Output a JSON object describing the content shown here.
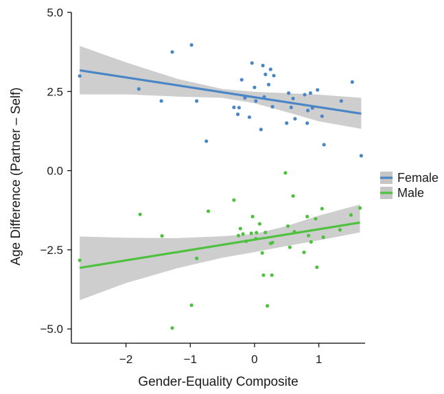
{
  "chart_data": {
    "type": "scatter",
    "title": "",
    "xlabel": "Gender-Equality Composite",
    "ylabel": "Age Difference (Partner – Self)",
    "xlim": [
      -2.85,
      1.72
    ],
    "ylim": [
      -5.45,
      5.0
    ],
    "x_ticks": [
      -2,
      -1,
      0,
      1
    ],
    "x_tick_labels": [
      "−2",
      "−1",
      "0",
      "1"
    ],
    "y_ticks": [
      5.0,
      2.5,
      0.0,
      -2.5,
      -5.0
    ],
    "y_tick_labels": [
      "5.0",
      "2.5",
      "0.0",
      "−2.5",
      "−5.0"
    ],
    "grid": false,
    "legend_position": "right",
    "series": [
      {
        "name": "Female",
        "color": "#4a86c6",
        "points": [
          {
            "x": -2.72,
            "y": 2.99
          },
          {
            "x": -1.8,
            "y": 2.58
          },
          {
            "x": -1.45,
            "y": 2.2
          },
          {
            "x": -1.28,
            "y": 3.75
          },
          {
            "x": -0.98,
            "y": 3.97
          },
          {
            "x": -0.9,
            "y": 2.2
          },
          {
            "x": -0.75,
            "y": 0.93
          },
          {
            "x": -0.32,
            "y": 2.0
          },
          {
            "x": -0.26,
            "y": 1.78
          },
          {
            "x": -0.24,
            "y": 1.99
          },
          {
            "x": -0.2,
            "y": 2.87
          },
          {
            "x": -0.15,
            "y": 2.3
          },
          {
            "x": -0.08,
            "y": 1.69
          },
          {
            "x": -0.04,
            "y": 3.4
          },
          {
            "x": 0.0,
            "y": 2.63
          },
          {
            "x": 0.02,
            "y": 2.2
          },
          {
            "x": 0.1,
            "y": 1.3
          },
          {
            "x": 0.13,
            "y": 3.32
          },
          {
            "x": 0.15,
            "y": 2.33
          },
          {
            "x": 0.17,
            "y": 3.04
          },
          {
            "x": 0.22,
            "y": 2.72
          },
          {
            "x": 0.25,
            "y": 3.2
          },
          {
            "x": 0.28,
            "y": 2.02
          },
          {
            "x": 0.3,
            "y": 3.0
          },
          {
            "x": 0.5,
            "y": 1.5
          },
          {
            "x": 0.53,
            "y": 2.45
          },
          {
            "x": 0.57,
            "y": 2.0
          },
          {
            "x": 0.6,
            "y": 2.28
          },
          {
            "x": 0.63,
            "y": 1.64
          },
          {
            "x": 0.78,
            "y": 2.4
          },
          {
            "x": 0.82,
            "y": 1.5
          },
          {
            "x": 0.83,
            "y": 1.9
          },
          {
            "x": 0.87,
            "y": 2.45
          },
          {
            "x": 0.9,
            "y": 1.98
          },
          {
            "x": 0.98,
            "y": 2.55
          },
          {
            "x": 1.05,
            "y": 1.72
          },
          {
            "x": 1.08,
            "y": 0.82
          },
          {
            "x": 1.35,
            "y": 2.2
          },
          {
            "x": 1.52,
            "y": 2.8
          },
          {
            "x": 1.66,
            "y": 0.47
          }
        ],
        "fit": {
          "x": [
            -2.72,
            1.66
          ],
          "y": [
            3.17,
            1.8
          ]
        },
        "band_upper": [
          {
            "x": -2.72,
            "y": 3.94
          },
          {
            "x": -2.0,
            "y": 3.42
          },
          {
            "x": -1.2,
            "y": 2.9
          },
          {
            "x": -0.5,
            "y": 2.58
          },
          {
            "x": 0.0,
            "y": 2.49
          },
          {
            "x": 0.5,
            "y": 2.45
          },
          {
            "x": 1.0,
            "y": 2.4
          },
          {
            "x": 1.66,
            "y": 2.3
          }
        ],
        "band_lower": [
          {
            "x": -2.72,
            "y": 2.41
          },
          {
            "x": -2.0,
            "y": 2.41
          },
          {
            "x": -1.2,
            "y": 2.34
          },
          {
            "x": -0.5,
            "y": 2.3
          },
          {
            "x": 0.0,
            "y": 2.13
          },
          {
            "x": 0.5,
            "y": 1.85
          },
          {
            "x": 1.0,
            "y": 1.56
          },
          {
            "x": 1.66,
            "y": 1.32
          }
        ]
      },
      {
        "name": "Male",
        "color": "#4ec13f",
        "points": [
          {
            "x": -2.72,
            "y": -2.83
          },
          {
            "x": -1.78,
            "y": -1.38
          },
          {
            "x": -1.44,
            "y": -2.06
          },
          {
            "x": -1.28,
            "y": -4.97
          },
          {
            "x": -0.98,
            "y": -4.25
          },
          {
            "x": -0.9,
            "y": -2.77
          },
          {
            "x": -0.72,
            "y": -1.28
          },
          {
            "x": -0.32,
            "y": -0.93
          },
          {
            "x": -0.25,
            "y": -2.05
          },
          {
            "x": -0.22,
            "y": -1.83
          },
          {
            "x": -0.18,
            "y": -2.0
          },
          {
            "x": -0.13,
            "y": -2.23
          },
          {
            "x": -0.05,
            "y": -1.98
          },
          {
            "x": -0.03,
            "y": -1.45
          },
          {
            "x": 0.02,
            "y": -2.15
          },
          {
            "x": 0.03,
            "y": -1.96
          },
          {
            "x": 0.08,
            "y": -1.68
          },
          {
            "x": 0.12,
            "y": -2.6
          },
          {
            "x": 0.14,
            "y": -3.3
          },
          {
            "x": 0.17,
            "y": -1.95
          },
          {
            "x": 0.2,
            "y": -4.27
          },
          {
            "x": 0.25,
            "y": -2.3
          },
          {
            "x": 0.28,
            "y": -2.27
          },
          {
            "x": 0.27,
            "y": -3.3
          },
          {
            "x": 0.48,
            "y": -0.07
          },
          {
            "x": 0.52,
            "y": -1.75
          },
          {
            "x": 0.55,
            "y": -2.42
          },
          {
            "x": 0.6,
            "y": -0.8
          },
          {
            "x": 0.62,
            "y": -1.93
          },
          {
            "x": 0.77,
            "y": -2.58
          },
          {
            "x": 0.82,
            "y": -1.45
          },
          {
            "x": 0.84,
            "y": -2.05
          },
          {
            "x": 0.88,
            "y": -2.25
          },
          {
            "x": 0.95,
            "y": -1.52
          },
          {
            "x": 0.97,
            "y": -3.05
          },
          {
            "x": 1.05,
            "y": -1.2
          },
          {
            "x": 1.07,
            "y": -2.1
          },
          {
            "x": 1.33,
            "y": -1.87
          },
          {
            "x": 1.5,
            "y": -1.4
          },
          {
            "x": 1.64,
            "y": -1.18
          }
        ],
        "fit": {
          "x": [
            -2.72,
            1.64
          ],
          "y": [
            -3.07,
            -1.64
          ]
        },
        "band_upper": [
          {
            "x": -2.72,
            "y": -2.08
          },
          {
            "x": -2.0,
            "y": -2.12
          },
          {
            "x": -1.2,
            "y": -2.13
          },
          {
            "x": -0.5,
            "y": -2.07
          },
          {
            "x": 0.0,
            "y": -2.0
          },
          {
            "x": 0.5,
            "y": -1.75
          },
          {
            "x": 1.0,
            "y": -1.42
          },
          {
            "x": 1.64,
            "y": -1.07
          }
        ],
        "band_lower": [
          {
            "x": -2.72,
            "y": -4.09
          },
          {
            "x": -2.0,
            "y": -3.55
          },
          {
            "x": -1.2,
            "y": -3.08
          },
          {
            "x": -0.5,
            "y": -2.75
          },
          {
            "x": 0.0,
            "y": -2.57
          },
          {
            "x": 0.5,
            "y": -2.38
          },
          {
            "x": 1.0,
            "y": -2.2
          },
          {
            "x": 1.64,
            "y": -1.95
          }
        ]
      }
    ],
    "band_color": "#c6c6c6"
  }
}
